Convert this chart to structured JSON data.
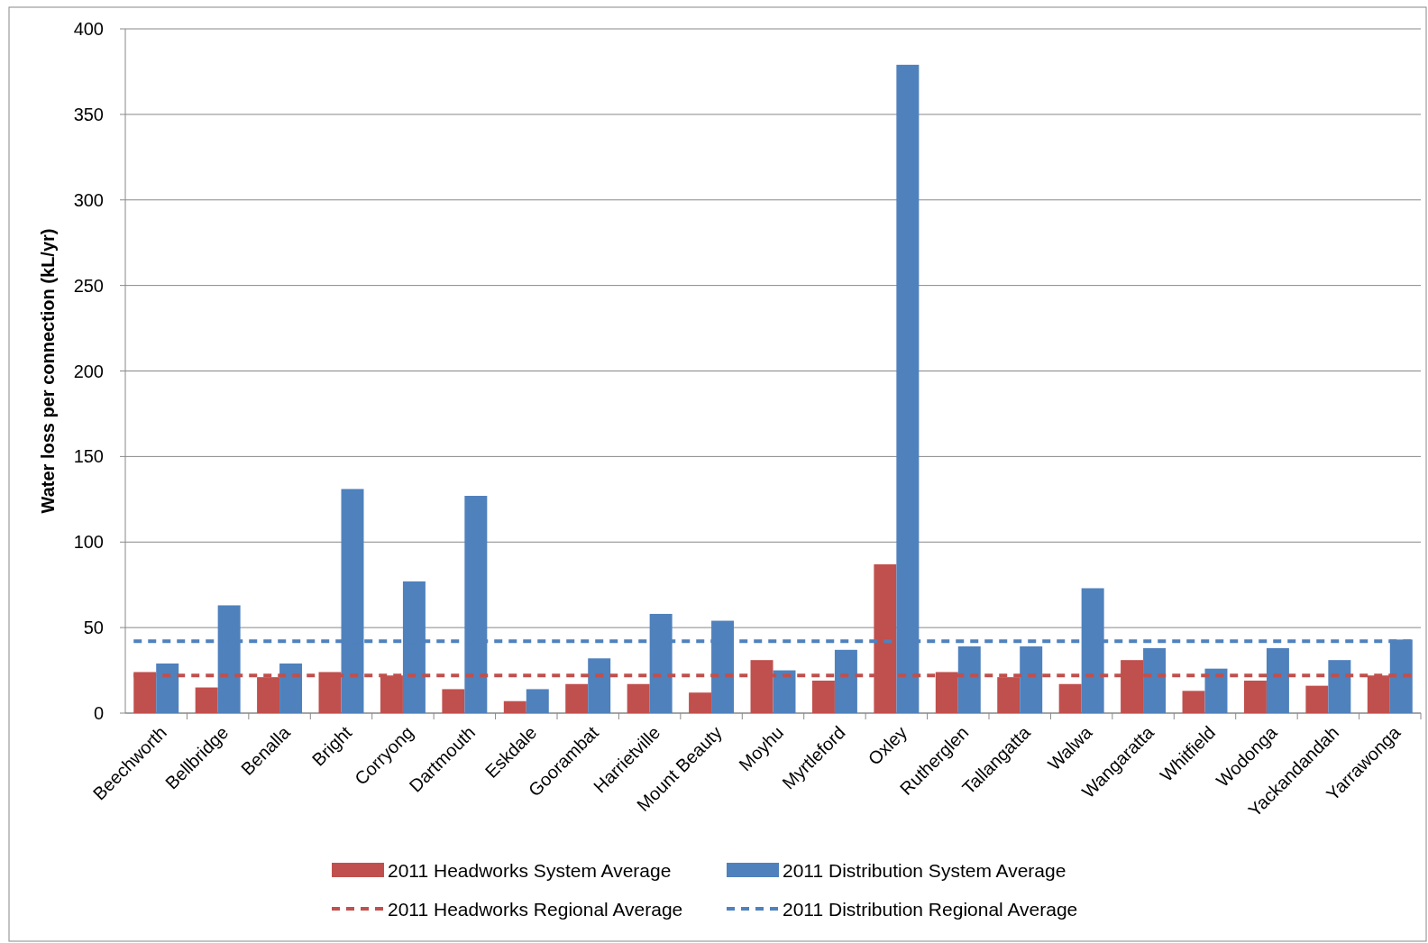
{
  "chart_data": {
    "type": "bar",
    "ylabel": "Water loss per connection (kL/yr)",
    "categories": [
      "Beechworth",
      "Bellbridge",
      "Benalla",
      "Bright",
      "Corryong",
      "Dartmouth",
      "Eskdale",
      "Goorambat",
      "Harrietville",
      "Mount Beauty",
      "Moyhu",
      "Myrtleford",
      "Oxley",
      "Rutherglen",
      "Tallangatta",
      "Walwa",
      "Wangaratta",
      "Whitfield",
      "Wodonga",
      "Yackandandah",
      "Yarrawonga"
    ],
    "series": [
      {
        "name": "2011 Headworks System Average",
        "color": "#c0504d",
        "values": [
          24,
          15,
          21,
          24,
          22,
          14,
          7,
          17,
          17,
          12,
          31,
          19,
          87,
          24,
          21,
          17,
          31,
          13,
          19,
          16,
          22
        ]
      },
      {
        "name": "2011 Distribution System Average",
        "color": "#4f81bd",
        "values": [
          29,
          63,
          29,
          131,
          77,
          127,
          14,
          32,
          58,
          54,
          25,
          37,
          379,
          39,
          39,
          73,
          38,
          26,
          38,
          31,
          43
        ]
      }
    ],
    "ref_lines": [
      {
        "axis": "y",
        "value": 22,
        "label": "2011 Headworks Regional Average",
        "color": "#c0504d",
        "line_style": "dashed"
      },
      {
        "axis": "y",
        "value": 42,
        "label": "2011 Distribution Regional Average",
        "color": "#4f81bd",
        "line_style": "dashed"
      }
    ],
    "ylim": [
      0,
      400
    ],
    "yticks": [
      0,
      50,
      100,
      150,
      200,
      250,
      300,
      350,
      400
    ],
    "grid": "y",
    "legend": "bottom"
  }
}
